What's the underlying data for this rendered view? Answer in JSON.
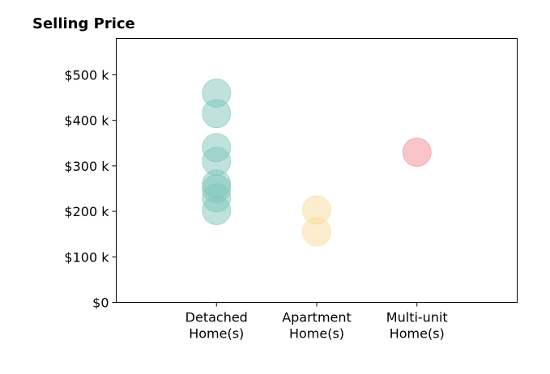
{
  "chart_data": {
    "type": "scatter",
    "title": "Selling Price",
    "xlabel": "",
    "ylabel": "",
    "categories": [
      "Detached\nHome(s)",
      "Apartment\nHome(s)",
      "Multi-unit\nHome(s)"
    ],
    "ylim": [
      0,
      580000
    ],
    "yticks": [
      {
        "value": 0,
        "label": "$0"
      },
      {
        "value": 100000,
        "label": "$100 k"
      },
      {
        "value": 200000,
        "label": "$200 k"
      },
      {
        "value": 300000,
        "label": "$300 k"
      },
      {
        "value": 400000,
        "label": "$400 k"
      },
      {
        "value": 500000,
        "label": "$500 k"
      }
    ],
    "series": [
      {
        "category": "Detached\nHome(s)",
        "color": "#7fc6bc",
        "values": [
          460000,
          415000,
          340000,
          310000,
          260000,
          250000,
          230000,
          202000
        ]
      },
      {
        "category": "Apartment\nHome(s)",
        "color": "#f7dc9c",
        "values": [
          203000,
          155000
        ]
      },
      {
        "category": "Multi-unit\nHome(s)",
        "color": "#f28b96",
        "values": [
          330000
        ]
      }
    ],
    "grid": false,
    "legend": "none"
  }
}
